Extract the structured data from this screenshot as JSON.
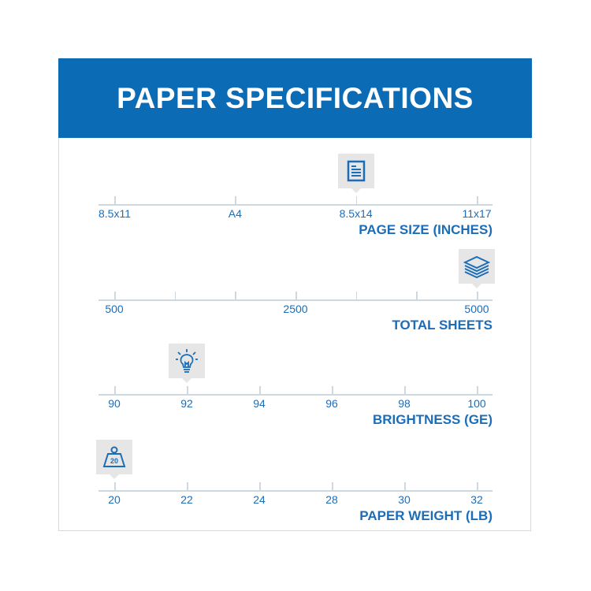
{
  "header": {
    "title": "PAPER SPECIFICATIONS"
  },
  "colors": {
    "brand_blue": "#0b6bb5",
    "text_blue": "#1c6db8",
    "line": "#cdd8df",
    "marker_bg": "#e6e6e6"
  },
  "scales": [
    {
      "title": "PAGE SIZE (INCHES)",
      "icon": "document-icon",
      "ticks": [
        "8.5x11",
        "A4",
        "8.5x14",
        "11x17"
      ],
      "labeled_ticks": [
        0,
        1,
        2,
        3
      ],
      "tick_count": 4,
      "selected": "8.5x14"
    },
    {
      "title": "TOTAL SHEETS",
      "icon": "paper-stack-icon",
      "ticks": [
        "500",
        "",
        "",
        "2500",
        "",
        "",
        "5000"
      ],
      "tick_count": 7,
      "selected": "5000"
    },
    {
      "title": "BRIGHTNESS (GE)",
      "icon": "lightbulb-icon",
      "ticks": [
        "90",
        "92",
        "94",
        "96",
        "98",
        "100"
      ],
      "tick_count": 6,
      "selected": "92"
    },
    {
      "title": "PAPER WEIGHT (LB)",
      "icon": "weight-icon",
      "icon_text": "20",
      "ticks": [
        "20",
        "22",
        "24",
        "28",
        "30",
        "32"
      ],
      "tick_count": 6,
      "selected": "20"
    }
  ]
}
